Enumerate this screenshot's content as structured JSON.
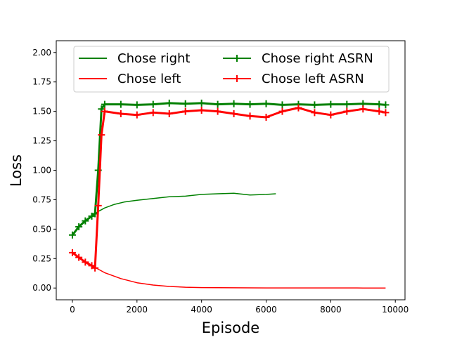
{
  "chart_data": {
    "type": "line",
    "title": "",
    "xlabel": "Episode",
    "ylabel": "Loss",
    "xlim": [
      -500,
      10300
    ],
    "ylim": [
      -0.1,
      2.1
    ],
    "x_ticks": [
      0,
      2000,
      4000,
      6000,
      8000,
      10000
    ],
    "x_tick_labels": [
      "0",
      "2000",
      "4000",
      "6000",
      "8000",
      "10000"
    ],
    "y_ticks": [
      0.0,
      0.25,
      0.5,
      0.75,
      1.0,
      1.25,
      1.5,
      1.75,
      2.0
    ],
    "y_tick_labels": [
      "0.00",
      "0.25",
      "0.50",
      "0.75",
      "1.00",
      "1.25",
      "1.50",
      "1.75",
      "2.00"
    ],
    "grid": false,
    "legend": {
      "placement": "top-center",
      "columns": 2
    },
    "series": [
      {
        "name": "Chose right",
        "color": "#008000",
        "marker": "none",
        "x": [
          0,
          200,
          400,
          600,
          800,
          1000,
          1300,
          1600,
          2000,
          2500,
          3000,
          3500,
          4000,
          4500,
          5000,
          5500,
          6000,
          6300
        ],
        "y": [
          0.45,
          0.52,
          0.57,
          0.61,
          0.65,
          0.68,
          0.71,
          0.73,
          0.745,
          0.76,
          0.775,
          0.78,
          0.795,
          0.8,
          0.805,
          0.79,
          0.795,
          0.8
        ]
      },
      {
        "name": "Chose left",
        "color": "#ff0000",
        "marker": "none",
        "x": [
          0,
          200,
          400,
          600,
          800,
          1000,
          1500,
          2000,
          2500,
          3000,
          3500,
          4000,
          5000,
          6000,
          7000,
          8000,
          9000,
          9700
        ],
        "y": [
          0.3,
          0.26,
          0.22,
          0.19,
          0.16,
          0.13,
          0.08,
          0.045,
          0.025,
          0.013,
          0.007,
          0.004,
          0.002,
          0.001,
          0.001,
          0.001,
          0.0,
          0.0
        ]
      },
      {
        "name": "Chose right ASRN",
        "color": "#008000",
        "marker": "+",
        "x": [
          0,
          200,
          400,
          600,
          700,
          800,
          900,
          1000,
          1500,
          2000,
          2500,
          3000,
          3500,
          4000,
          4500,
          5000,
          5500,
          6000,
          6500,
          7000,
          7500,
          8000,
          8500,
          9000,
          9500,
          9700
        ],
        "y": [
          0.45,
          0.52,
          0.57,
          0.61,
          0.63,
          1.0,
          1.52,
          1.56,
          1.56,
          1.555,
          1.56,
          1.57,
          1.565,
          1.57,
          1.56,
          1.565,
          1.56,
          1.565,
          1.555,
          1.56,
          1.555,
          1.56,
          1.56,
          1.565,
          1.56,
          1.555
        ]
      },
      {
        "name": "Chose left ASRN",
        "color": "#ff0000",
        "marker": "+",
        "x": [
          0,
          200,
          400,
          600,
          700,
          800,
          900,
          1000,
          1500,
          2000,
          2500,
          3000,
          3500,
          4000,
          4500,
          5000,
          5500,
          6000,
          6500,
          7000,
          7500,
          8000,
          8500,
          9000,
          9500,
          9700
        ],
        "y": [
          0.3,
          0.26,
          0.22,
          0.19,
          0.17,
          0.7,
          1.3,
          1.5,
          1.48,
          1.47,
          1.49,
          1.48,
          1.5,
          1.51,
          1.5,
          1.48,
          1.46,
          1.45,
          1.5,
          1.53,
          1.49,
          1.47,
          1.5,
          1.52,
          1.5,
          1.49
        ]
      }
    ]
  }
}
